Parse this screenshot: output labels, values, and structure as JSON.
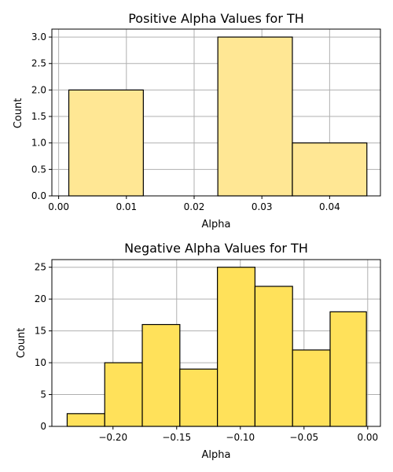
{
  "chart_data": [
    {
      "type": "bar",
      "title": "Positive Alpha Values for TH",
      "xlabel": "Alpha",
      "ylabel": "Count",
      "bins": [
        {
          "x0": 0.0015,
          "x1": 0.0125,
          "count": 2
        },
        {
          "x0": 0.0125,
          "x1": 0.0235,
          "count": 0
        },
        {
          "x0": 0.0235,
          "x1": 0.0345,
          "count": 3
        },
        {
          "x0": 0.0345,
          "x1": 0.0455,
          "count": 1
        }
      ],
      "xlim": [
        -0.001,
        0.0475
      ],
      "ylim": [
        0,
        3.15
      ],
      "xticks": [
        0.0,
        0.01,
        0.02,
        0.03,
        0.04
      ],
      "xtick_labels": [
        "0.00",
        "0.01",
        "0.02",
        "0.03",
        "0.04"
      ],
      "yticks": [
        0.0,
        0.5,
        1.0,
        1.5,
        2.0,
        2.5,
        3.0
      ],
      "ytick_labels": [
        "0.0",
        "0.5",
        "1.0",
        "1.5",
        "2.0",
        "2.5",
        "3.0"
      ],
      "grid": true,
      "bar_color": "#ffe794",
      "bar_edge_color": "#000000"
    },
    {
      "type": "bar",
      "title": "Negative Alpha Values for TH",
      "xlabel": "Alpha",
      "ylabel": "Count",
      "bins": [
        {
          "x0": -0.236,
          "x1": -0.2065,
          "count": 2
        },
        {
          "x0": -0.2065,
          "x1": -0.177,
          "count": 10
        },
        {
          "x0": -0.177,
          "x1": -0.1475,
          "count": 16
        },
        {
          "x0": -0.1475,
          "x1": -0.118,
          "count": 9
        },
        {
          "x0": -0.118,
          "x1": -0.0885,
          "count": 25
        },
        {
          "x0": -0.0885,
          "x1": -0.059,
          "count": 22
        },
        {
          "x0": -0.059,
          "x1": -0.0295,
          "count": 12
        },
        {
          "x0": -0.0295,
          "x1": -0.001,
          "count": 18
        }
      ],
      "xlim": [
        -0.248,
        0.01
      ],
      "ylim": [
        0,
        26.2
      ],
      "xticks": [
        -0.2,
        -0.15,
        -0.1,
        -0.05,
        0.0
      ],
      "xtick_labels": [
        "−0.20",
        "−0.15",
        "−0.10",
        "−0.05",
        "0.00"
      ],
      "yticks": [
        0,
        5,
        10,
        15,
        20,
        25
      ],
      "ytick_labels": [
        "0",
        "5",
        "10",
        "15",
        "20",
        "25"
      ],
      "grid": true,
      "bar_color": "#ffe15a",
      "bar_edge_color": "#000000"
    }
  ]
}
